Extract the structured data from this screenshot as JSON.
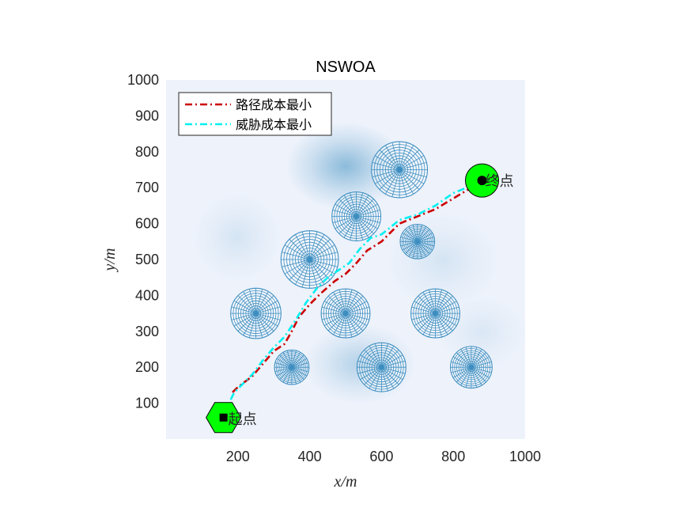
{
  "chart_data": {
    "type": "line",
    "title": "NSWOA",
    "xlabel": "x/m",
    "ylabel": "y/m",
    "xlim": [
      0,
      1000
    ],
    "ylim": [
      0,
      1000
    ],
    "xticks": [
      200,
      400,
      600,
      800,
      1000
    ],
    "yticks": [
      100,
      200,
      300,
      400,
      500,
      600,
      700,
      800,
      900,
      1000
    ],
    "legend_position": "top-left",
    "background_color": "#edf2fb",
    "threat_color": "#3d8ec0",
    "start": {
      "x": 160,
      "y": 60,
      "label": "起点",
      "color": "#00ff00"
    },
    "end": {
      "x": 880,
      "y": 720,
      "label": "终点",
      "color": "#00ff00"
    },
    "threats": [
      {
        "x": 650,
        "y": 750,
        "r": 78
      },
      {
        "x": 530,
        "y": 620,
        "r": 68
      },
      {
        "x": 700,
        "y": 550,
        "r": 48
      },
      {
        "x": 400,
        "y": 500,
        "r": 80
      },
      {
        "x": 250,
        "y": 350,
        "r": 70
      },
      {
        "x": 500,
        "y": 350,
        "r": 68
      },
      {
        "x": 750,
        "y": 350,
        "r": 68
      },
      {
        "x": 350,
        "y": 200,
        "r": 48
      },
      {
        "x": 600,
        "y": 200,
        "r": 68
      },
      {
        "x": 850,
        "y": 200,
        "r": 58
      }
    ],
    "series": [
      {
        "name": "路径成本最小",
        "color": "#cc0000",
        "dash": "dashdot",
        "x": [
          185,
          200,
          240,
          270,
          300,
          330,
          350,
          370,
          400,
          430,
          470,
          500,
          530,
          560,
          600,
          650,
          700,
          750,
          800,
          850,
          880
        ],
        "y": [
          130,
          145,
          175,
          210,
          245,
          265,
          300,
          340,
          375,
          405,
          440,
          460,
          490,
          525,
          550,
          600,
          620,
          640,
          670,
          700,
          720
        ]
      },
      {
        "name": "威胁成本最小",
        "color": "#00f0f0",
        "dash": "dashdot",
        "x": [
          180,
          190,
          210,
          240,
          270,
          300,
          330,
          360,
          390,
          420,
          450,
          480,
          510,
          540,
          570,
          600,
          650,
          700,
          750,
          800,
          850,
          880
        ],
        "y": [
          110,
          130,
          150,
          180,
          220,
          255,
          285,
          330,
          380,
          420,
          450,
          470,
          490,
          530,
          560,
          570,
          610,
          625,
          650,
          685,
          705,
          720
        ]
      }
    ]
  }
}
